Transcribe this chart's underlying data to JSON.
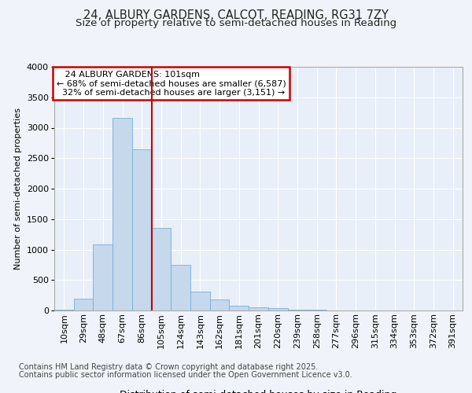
{
  "title_line1": "24, ALBURY GARDENS, CALCOT, READING, RG31 7ZY",
  "title_line2": "Size of property relative to semi-detached houses in Reading",
  "xlabel": "Distribution of semi-detached houses by size in Reading",
  "ylabel": "Number of semi-detached properties",
  "bar_color": "#c5d8ec",
  "bar_edge_color": "#7aafd4",
  "background_color": "#f0f4fa",
  "plot_bg_color": "#e8eff8",
  "grid_color": "#ffffff",
  "categories": [
    "10sqm",
    "29sqm",
    "48sqm",
    "67sqm",
    "86sqm",
    "105sqm",
    "124sqm",
    "143sqm",
    "162sqm",
    "181sqm",
    "201sqm",
    "220sqm",
    "239sqm",
    "258sqm",
    "277sqm",
    "296sqm",
    "315sqm",
    "334sqm",
    "353sqm",
    "372sqm",
    "391sqm"
  ],
  "values": [
    10,
    200,
    1090,
    3160,
    2650,
    1350,
    750,
    305,
    175,
    75,
    55,
    35,
    18,
    8,
    3,
    2,
    1,
    0,
    0,
    0,
    0
  ],
  "property_label": "24 ALBURY GARDENS: 101sqm",
  "pct_smaller": 68,
  "pct_larger": 32,
  "count_smaller": 6587,
  "count_larger": 3151,
  "annotation_box_color": "#ffffff",
  "annotation_box_edge": "#cc0000",
  "property_line_color": "#cc0000",
  "ylim": [
    0,
    4000
  ],
  "yticks": [
    0,
    500,
    1000,
    1500,
    2000,
    2500,
    3000,
    3500,
    4000
  ],
  "footnote1": "Contains HM Land Registry data © Crown copyright and database right 2025.",
  "footnote2": "Contains public sector information licensed under the Open Government Licence v3.0.",
  "title_fontsize": 10.5,
  "subtitle_fontsize": 9.5,
  "axis_label_fontsize": 9,
  "tick_fontsize": 8,
  "annotation_fontsize": 8,
  "footnote_fontsize": 7,
  "ylabel_fontsize": 8
}
